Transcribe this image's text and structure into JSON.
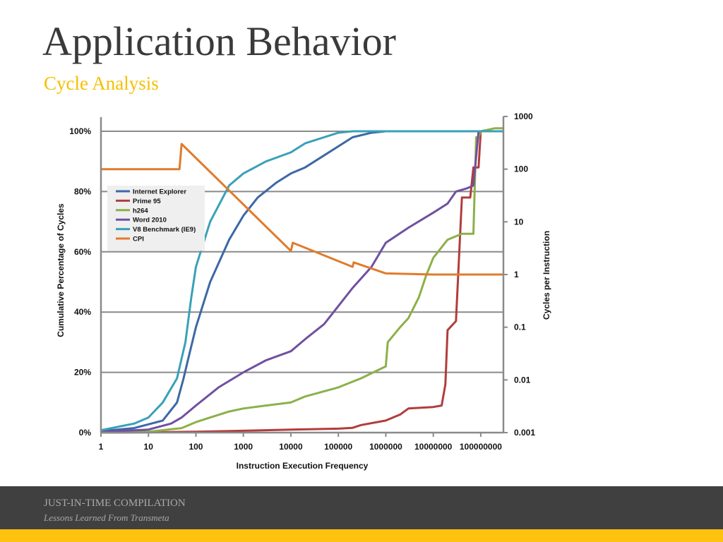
{
  "slide": {
    "title": "Application Behavior",
    "subtitle": "Cycle Analysis",
    "footer_title": "JUST-IN-TIME COMPILATION",
    "footer_subtitle": "Lessons Learned From Transmeta"
  },
  "colors": {
    "title": "#3a3a3a",
    "accent": "#f5c000",
    "footer_bg": "#404040",
    "footer_bar": "#ffc20e",
    "footer_text": "#a8a8a8"
  },
  "chart_data": {
    "type": "line",
    "xlabel": "Instruction Execution Frequency",
    "ylabel": "Cumulative Percentage of Cycles",
    "y2label": "Cycles per Instruction",
    "x_scale": "log",
    "xlim": [
      1,
      300000000
    ],
    "ylim": [
      0,
      100
    ],
    "y2_scale": "log",
    "y2lim": [
      0.001,
      1000
    ],
    "grid": "horizontal",
    "legend_position": "top-left",
    "x_ticks": [
      "1",
      "10",
      "100",
      "1000",
      "10000",
      "100000",
      "1000000",
      "10000000",
      "100000000"
    ],
    "y_ticks": [
      "0%",
      "20%",
      "40%",
      "60%",
      "80%",
      "100%"
    ],
    "y2_ticks": [
      "0.001",
      "0.01",
      "0.1",
      "1",
      "10",
      "100",
      "1000"
    ],
    "series": [
      {
        "name": "Internet Explorer",
        "color": "#3d68a6",
        "axis": "left",
        "points": [
          [
            1,
            0.5
          ],
          [
            5,
            1.5
          ],
          [
            20,
            4
          ],
          [
            40,
            10
          ],
          [
            55,
            18
          ],
          [
            70,
            25
          ],
          [
            100,
            35
          ],
          [
            200,
            50
          ],
          [
            500,
            64
          ],
          [
            1000,
            72
          ],
          [
            2000,
            78
          ],
          [
            5000,
            83
          ],
          [
            10000,
            86
          ],
          [
            20000,
            88
          ],
          [
            50000,
            92
          ],
          [
            100000,
            95
          ],
          [
            200000,
            98
          ],
          [
            500000,
            99.5
          ],
          [
            1000000,
            100
          ],
          [
            300000000,
            100
          ]
        ]
      },
      {
        "name": "Prime 95",
        "color": "#b23c3c",
        "axis": "left",
        "points": [
          [
            1,
            0
          ],
          [
            10,
            0.1
          ],
          [
            100,
            0.3
          ],
          [
            1000,
            0.6
          ],
          [
            10000,
            1
          ],
          [
            100000,
            1.3
          ],
          [
            200000,
            1.6
          ],
          [
            300000,
            2.5
          ],
          [
            1000000,
            4
          ],
          [
            2000000,
            6
          ],
          [
            3000000,
            8
          ],
          [
            10000000,
            8.5
          ],
          [
            15000000,
            9
          ],
          [
            18000000,
            16
          ],
          [
            20000000,
            34
          ],
          [
            30000000,
            37
          ],
          [
            40000000,
            78
          ],
          [
            60000000,
            78
          ],
          [
            70000000,
            88
          ],
          [
            90000000,
            88
          ],
          [
            100000000,
            100
          ],
          [
            300000000,
            100
          ]
        ]
      },
      {
        "name": "h264",
        "color": "#8cb04a",
        "axis": "left",
        "points": [
          [
            1,
            0
          ],
          [
            10,
            0.3
          ],
          [
            50,
            1.5
          ],
          [
            100,
            3.5
          ],
          [
            200,
            5
          ],
          [
            500,
            7
          ],
          [
            1000,
            8
          ],
          [
            3000,
            9
          ],
          [
            10000,
            10
          ],
          [
            20000,
            12
          ],
          [
            100000,
            15
          ],
          [
            300000,
            18
          ],
          [
            1000000,
            22
          ],
          [
            1100000,
            30
          ],
          [
            2000000,
            35
          ],
          [
            3000000,
            38
          ],
          [
            5000000,
            45
          ],
          [
            7000000,
            52
          ],
          [
            10000000,
            58
          ],
          [
            20000000,
            64
          ],
          [
            40000000,
            66
          ],
          [
            70000000,
            66
          ],
          [
            80000000,
            98
          ],
          [
            90000000,
            98
          ],
          [
            100000000,
            100
          ],
          [
            200000000,
            101
          ],
          [
            300000000,
            101
          ]
        ]
      },
      {
        "name": "Word 2010",
        "color": "#7050a0",
        "axis": "left",
        "points": [
          [
            1,
            0.2
          ],
          [
            10,
            1
          ],
          [
            30,
            3
          ],
          [
            50,
            5
          ],
          [
            100,
            9
          ],
          [
            300,
            15
          ],
          [
            1000,
            20
          ],
          [
            3000,
            24
          ],
          [
            10000,
            27
          ],
          [
            20000,
            31
          ],
          [
            50000,
            36
          ],
          [
            100000,
            42
          ],
          [
            200000,
            48
          ],
          [
            500000,
            55
          ],
          [
            1000000,
            63
          ],
          [
            3000000,
            68
          ],
          [
            10000000,
            73
          ],
          [
            20000000,
            76
          ],
          [
            30000000,
            80
          ],
          [
            50000000,
            81
          ],
          [
            70000000,
            82
          ],
          [
            90000000,
            100
          ],
          [
            300000000,
            100
          ]
        ]
      },
      {
        "name": "V8 Benchmark (IE9)",
        "color": "#3aa0b8",
        "axis": "left",
        "points": [
          [
            1,
            0.8
          ],
          [
            5,
            3
          ],
          [
            10,
            5
          ],
          [
            20,
            10
          ],
          [
            40,
            18
          ],
          [
            60,
            30
          ],
          [
            80,
            45
          ],
          [
            100,
            55
          ],
          [
            200,
            70
          ],
          [
            500,
            82
          ],
          [
            1000,
            86
          ],
          [
            3000,
            90
          ],
          [
            10000,
            93
          ],
          [
            20000,
            96
          ],
          [
            50000,
            98
          ],
          [
            100000,
            99.5
          ],
          [
            200000,
            100
          ],
          [
            300000000,
            100
          ]
        ]
      },
      {
        "name": "CPI",
        "color": "#e07b2c",
        "axis": "right",
        "points": [
          [
            1,
            100
          ],
          [
            45,
            100
          ],
          [
            50,
            300
          ],
          [
            10000,
            2.8
          ],
          [
            11000,
            4
          ],
          [
            200000,
            1.4
          ],
          [
            210000,
            1.7
          ],
          [
            1000000,
            1.05
          ],
          [
            10000000,
            1
          ],
          [
            300000000,
            1
          ]
        ]
      }
    ]
  }
}
